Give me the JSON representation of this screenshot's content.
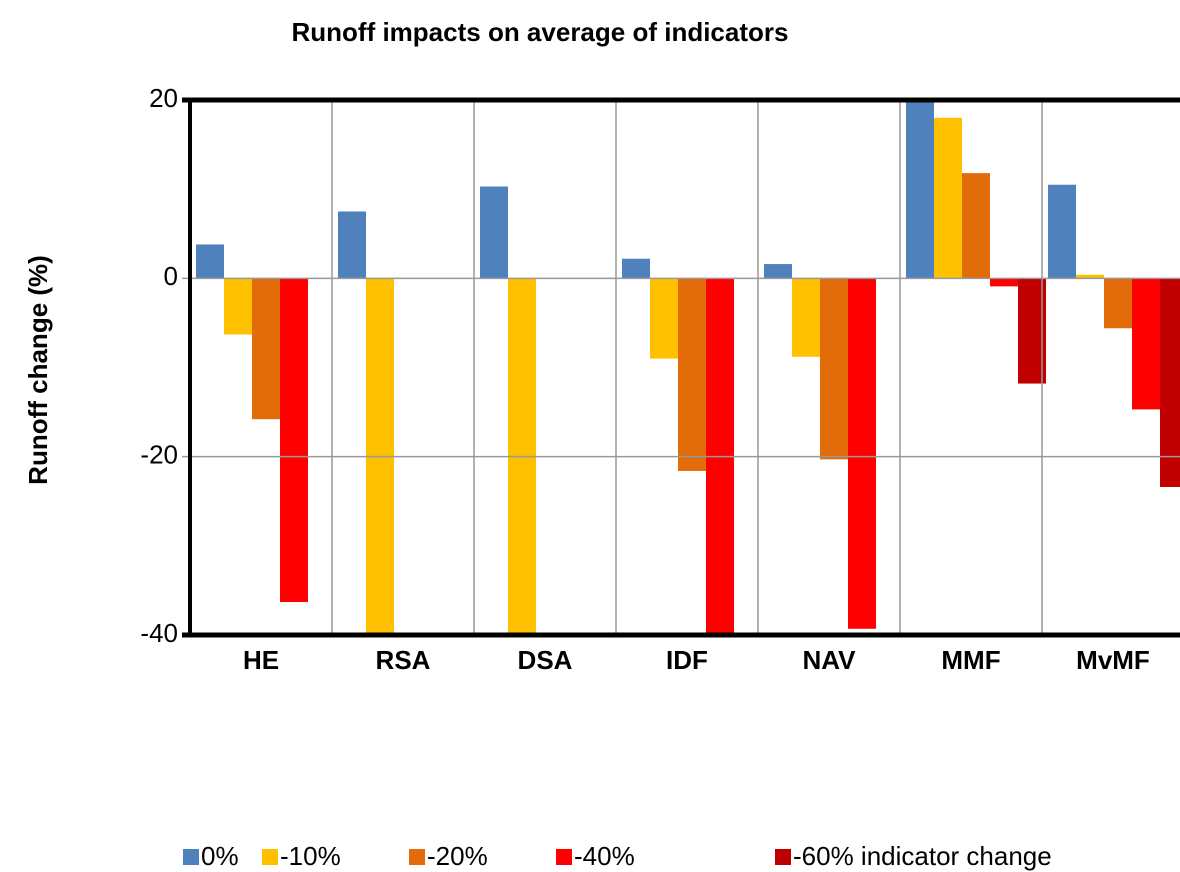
{
  "chart_data": {
    "type": "bar",
    "title": "Runoff impacts on average of indicators",
    "y_label": "Runoff change (%)",
    "categories": [
      "HE",
      "RSA",
      "DSA",
      "IDF",
      "NAV",
      "MMF",
      "MvMF"
    ],
    "series": [
      {
        "name": "0%",
        "color": "#4f81bd",
        "values": [
          3.8,
          7.5,
          10.3,
          2.2,
          1.6,
          20.2,
          10.5
        ]
      },
      {
        "name": "-10%",
        "color": "#ffc000",
        "values": [
          -6.3,
          -40,
          -40,
          -9,
          -8.8,
          18,
          0.4
        ]
      },
      {
        "name": "-20%",
        "color": "#e36c0a",
        "values": [
          -15.8,
          null,
          null,
          -21.6,
          -20.3,
          11.8,
          -5.6
        ]
      },
      {
        "name": "-40%",
        "color": "#ff0000",
        "values": [
          -36.3,
          null,
          null,
          -40,
          -39.3,
          -0.9,
          -14.7
        ]
      },
      {
        "name": "-60% indicator change",
        "color": "#c00000",
        "values": [
          null,
          null,
          null,
          null,
          null,
          -11.8,
          -23.4
        ]
      }
    ],
    "ylim": [
      -40,
      20
    ],
    "yticks": [
      -40,
      -20,
      0,
      20
    ],
    "grid": true
  }
}
